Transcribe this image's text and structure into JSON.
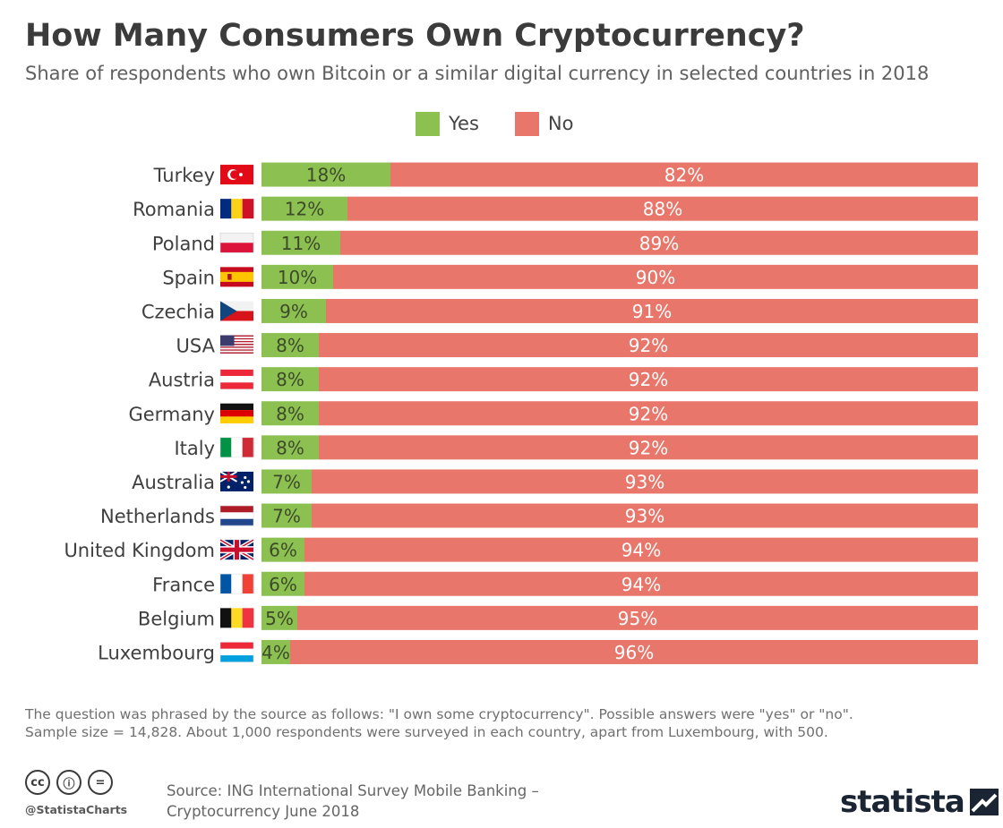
{
  "header": {
    "title": "How Many Consumers Own Cryptocurrency?",
    "subtitle": "Share of respondents who own Bitcoin or a similar digital currency in selected countries in 2018"
  },
  "legend": [
    {
      "label": "Yes",
      "color": "#8cc152"
    },
    {
      "label": "No",
      "color": "#e8766a"
    }
  ],
  "chart_data": {
    "type": "bar",
    "orientation": "horizontal",
    "stacked": true,
    "unit": "%",
    "xlim": [
      0,
      100
    ],
    "categories": [
      "Turkey",
      "Romania",
      "Poland",
      "Spain",
      "Czechia",
      "USA",
      "Austria",
      "Germany",
      "Italy",
      "Australia",
      "Netherlands",
      "United Kingdom",
      "France",
      "Belgium",
      "Luxembourg"
    ],
    "series": [
      {
        "name": "Yes",
        "color": "#8cc152",
        "values": [
          18,
          12,
          11,
          10,
          9,
          8,
          8,
          8,
          8,
          7,
          7,
          6,
          6,
          5,
          4
        ]
      },
      {
        "name": "No",
        "color": "#e8766a",
        "values": [
          82,
          88,
          89,
          90,
          91,
          92,
          92,
          92,
          92,
          93,
          93,
          94,
          94,
          95,
          96
        ]
      }
    ],
    "flags": [
      "flag-turkey-icon",
      "flag-romania-icon",
      "flag-poland-icon",
      "flag-spain-icon",
      "flag-czechia-icon",
      "flag-usa-icon",
      "flag-austria-icon",
      "flag-germany-icon",
      "flag-italy-icon",
      "flag-australia-icon",
      "flag-netherlands-icon",
      "flag-uk-icon",
      "flag-france-icon",
      "flag-belgium-icon",
      "flag-luxembourg-icon"
    ]
  },
  "footer": {
    "note_line1": "The question was phrased by the source as follows: \"I own some cryptocurrency\". Possible answers were \"yes\" or \"no\".",
    "note_line2": "Sample size = 14,828. About 1,000 respondents were surveyed in each country, apart from Luxembourg, with 500.",
    "source_line1": "Source: ING International Survey Mobile Banking –",
    "source_line2": "Cryptocurrency June 2018",
    "handle": "@StatistaCharts",
    "cc_icons": [
      "cc",
      "ⓘ",
      "="
    ],
    "brand": "statista"
  }
}
